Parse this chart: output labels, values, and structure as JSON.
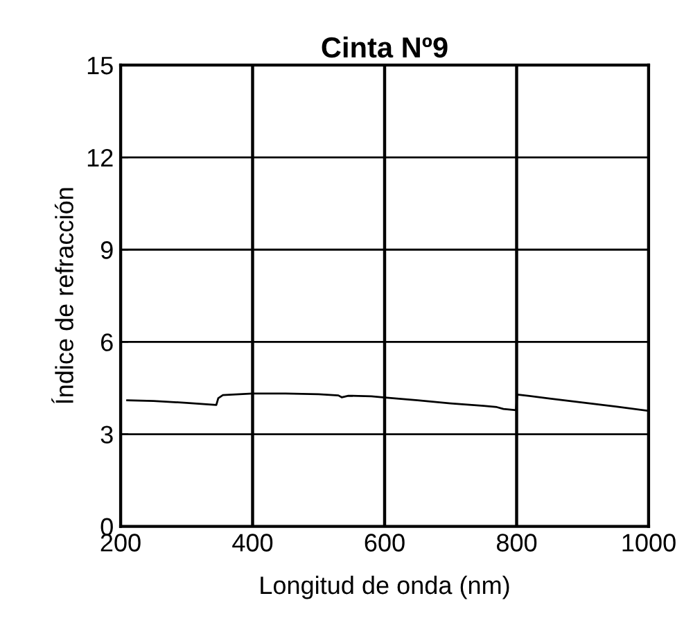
{
  "chart_data": {
    "type": "line",
    "title": "Cinta Nº9",
    "xlabel": "Longitud de onda (nm)",
    "ylabel": "Índice de refracción",
    "series": [
      {
        "color": "#000000",
        "x": [
          210,
          250,
          300,
          345,
          348,
          355,
          380,
          400,
          450,
          500,
          530,
          535,
          545,
          580,
          600,
          650,
          700,
          750,
          770,
          780,
          799,
          801,
          850,
          900,
          950,
          1000
        ],
        "values": [
          4.1,
          4.08,
          4.02,
          3.95,
          4.17,
          4.27,
          4.3,
          4.32,
          4.32,
          4.3,
          4.26,
          4.2,
          4.25,
          4.23,
          4.19,
          4.1,
          4.0,
          3.92,
          3.88,
          3.82,
          3.78,
          4.29,
          4.16,
          4.03,
          3.9,
          3.76
        ]
      }
    ],
    "xlim": [
      200,
      1000
    ],
    "ylim": [
      0,
      15
    ],
    "xticks": [
      200,
      400,
      600,
      800,
      1000
    ],
    "yticks": [
      0,
      3,
      6,
      9,
      12,
      15
    ],
    "grid": true,
    "legend": false
  }
}
